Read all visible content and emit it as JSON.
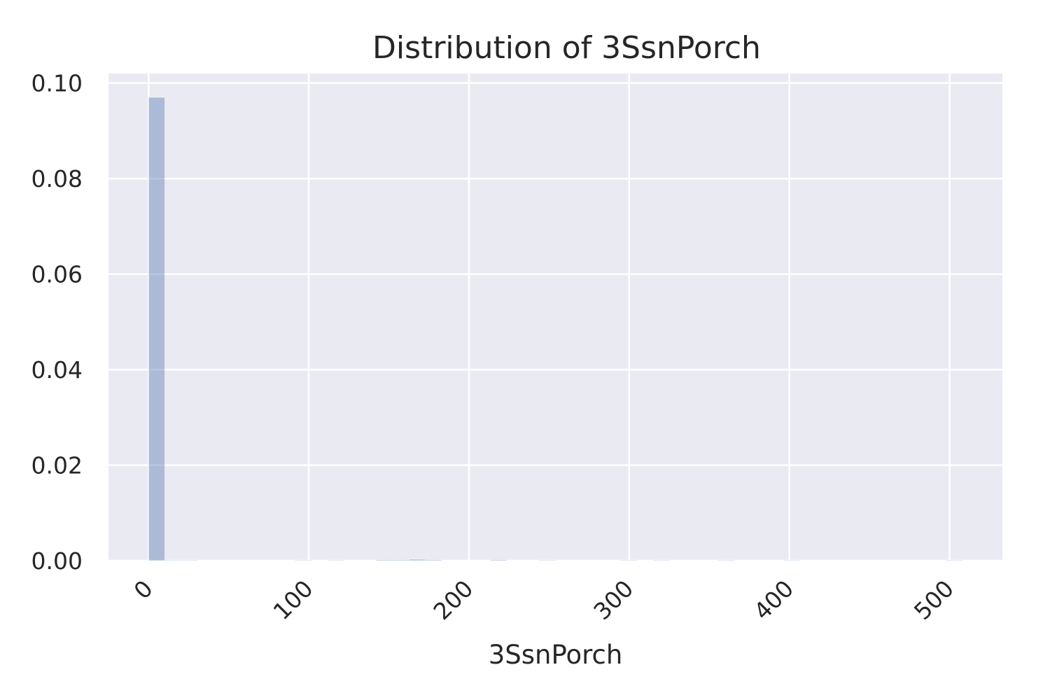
{
  "chart_data": {
    "type": "bar",
    "title": "Distribution of 3SsnPorch",
    "xlabel": "3SsnPorch",
    "ylabel": "",
    "xlim": [
      -25,
      533
    ],
    "ylim": [
      0,
      0.102
    ],
    "x_ticks": [
      0,
      100,
      200,
      300,
      400,
      500
    ],
    "x_tick_labels": [
      "0",
      "100",
      "200",
      "300",
      "400",
      "500"
    ],
    "y_ticks": [
      0.0,
      0.02,
      0.04,
      0.06,
      0.08,
      0.1
    ],
    "y_tick_labels": [
      "0.00",
      "0.02",
      "0.04",
      "0.06",
      "0.08",
      "0.10"
    ],
    "grid": true,
    "bins": [
      {
        "x0": 0.0,
        "x1": 10.16,
        "density": 0.097
      },
      {
        "x0": 10.16,
        "x1": 20.32,
        "density": 0.0
      },
      {
        "x0": 20.32,
        "x1": 30.48,
        "density": 0.0001
      },
      {
        "x0": 91.44,
        "x1": 101.6,
        "density": 0.0001
      },
      {
        "x0": 111.76,
        "x1": 121.92,
        "density": 0.0001
      },
      {
        "x0": 142.24,
        "x1": 152.4,
        "density": 0.0002
      },
      {
        "x0": 152.4,
        "x1": 162.56,
        "density": 0.0002
      },
      {
        "x0": 162.56,
        "x1": 172.72,
        "density": 0.0003
      },
      {
        "x0": 172.72,
        "x1": 182.88,
        "density": 0.0002
      },
      {
        "x0": 213.36,
        "x1": 223.52,
        "density": 0.0002
      },
      {
        "x0": 243.84,
        "x1": 254.0,
        "density": 0.0001
      },
      {
        "x0": 294.64,
        "x1": 304.8,
        "density": 0.0001
      },
      {
        "x0": 314.96,
        "x1": 325.12,
        "density": 0.0001
      },
      {
        "x0": 355.6,
        "x1": 365.76,
        "density": 0.0001
      },
      {
        "x0": 396.24,
        "x1": 406.4,
        "density": 0.0001
      },
      {
        "x0": 497.84,
        "x1": 508.0,
        "density": 0.0001
      }
    ],
    "colors": {
      "background": "#eaeaf2",
      "grid": "#ffffff",
      "bar": "#4c72b0",
      "text": "#262626"
    }
  }
}
